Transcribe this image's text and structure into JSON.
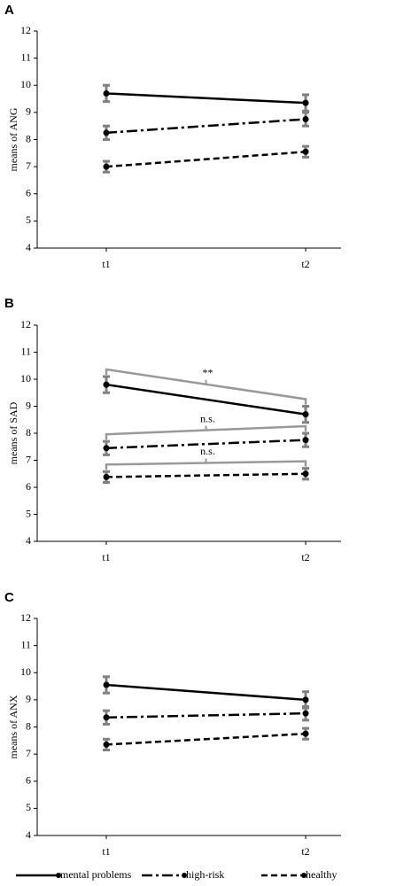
{
  "chart_data": [
    {
      "type": "line",
      "label": "A",
      "ylabel": "means of ANG",
      "categories": [
        "t1",
        "t2"
      ],
      "ylim": [
        4,
        12
      ],
      "yticks": [
        4,
        5,
        6,
        7,
        8,
        9,
        10,
        11,
        12
      ],
      "error_color": "#808080",
      "series": [
        {
          "color": "#000000",
          "dash": "solid",
          "values": [
            9.7,
            9.35
          ],
          "errors": [
            0.3,
            0.3
          ]
        },
        {
          "color": "#000000",
          "dash": "dashdot",
          "values": [
            8.25,
            8.75
          ],
          "errors": [
            0.25,
            0.25
          ]
        },
        {
          "color": "#000000",
          "dash": "dashed",
          "values": [
            7.0,
            7.55
          ],
          "errors": [
            0.2,
            0.2
          ]
        }
      ]
    },
    {
      "type": "line",
      "label": "B",
      "ylabel": "means of SAD",
      "categories": [
        "t1",
        "t2"
      ],
      "ylim": [
        4,
        12
      ],
      "yticks": [
        4,
        5,
        6,
        7,
        8,
        9,
        10,
        11,
        12
      ],
      "error_color": "#808080",
      "annotations": [
        "**",
        "n.s.",
        "n.s."
      ],
      "annotation_color": "#999999",
      "series": [
        {
          "color": "#000000",
          "dash": "solid",
          "values": [
            9.8,
            8.7
          ],
          "errors": [
            0.3,
            0.3
          ]
        },
        {
          "color": "#000000",
          "dash": "dashdot",
          "values": [
            7.45,
            7.75
          ],
          "errors": [
            0.25,
            0.25
          ]
        },
        {
          "color": "#000000",
          "dash": "dashed",
          "values": [
            6.38,
            6.5
          ],
          "errors": [
            0.2,
            0.2
          ]
        }
      ]
    },
    {
      "type": "line",
      "label": "C",
      "ylabel": "means of ANX",
      "categories": [
        "t1",
        "t2"
      ],
      "ylim": [
        4,
        12
      ],
      "yticks": [
        4,
        5,
        6,
        7,
        8,
        9,
        10,
        11,
        12
      ],
      "error_color": "#808080",
      "legend": "bottom",
      "series": [
        {
          "name": "mental problems",
          "color": "#000000",
          "dash": "solid",
          "values": [
            9.55,
            9.0
          ],
          "errors": [
            0.3,
            0.3
          ]
        },
        {
          "name": "high-risk",
          "color": "#000000",
          "dash": "dashdot",
          "values": [
            8.35,
            8.5
          ],
          "errors": [
            0.25,
            0.25
          ]
        },
        {
          "name": "healthy",
          "color": "#000000",
          "dash": "dashed",
          "values": [
            7.35,
            7.75
          ],
          "errors": [
            0.2,
            0.2
          ]
        }
      ]
    }
  ]
}
